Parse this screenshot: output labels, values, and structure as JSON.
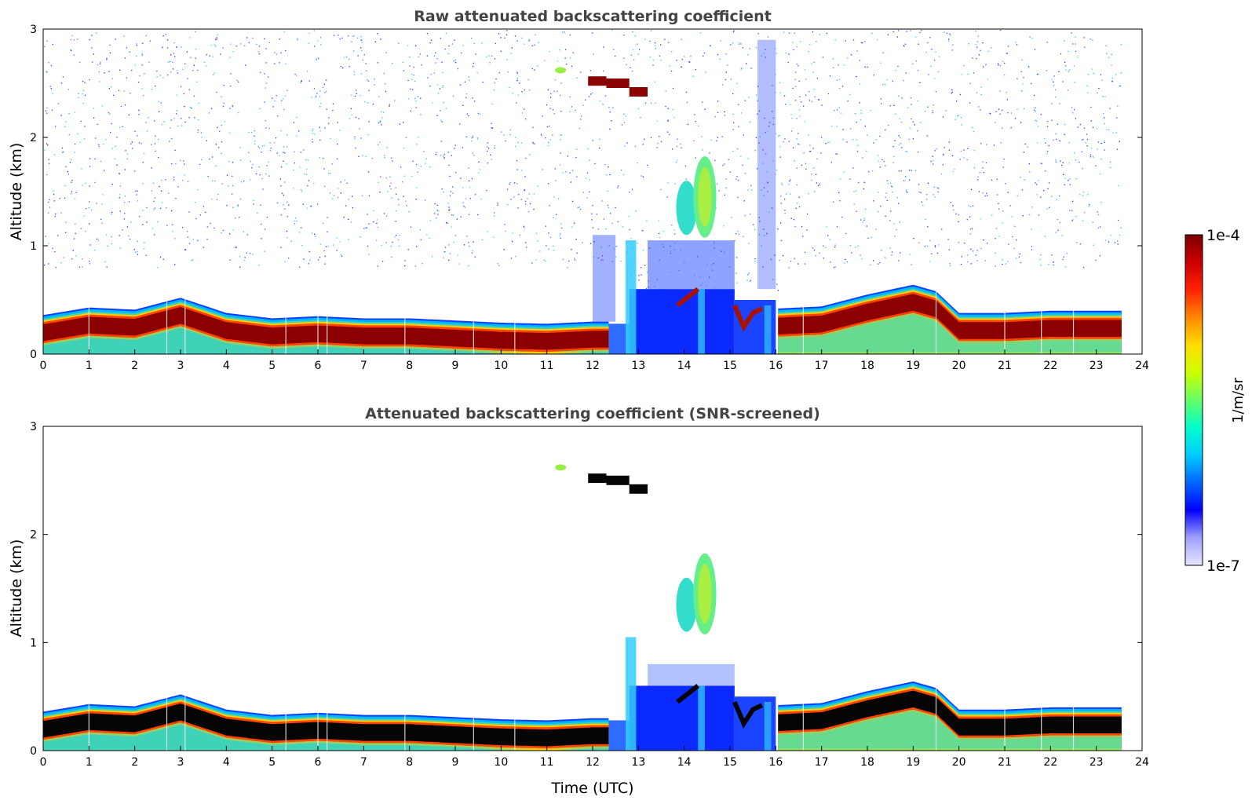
{
  "chart_data": [
    {
      "type": "heatmap",
      "title": "Raw attenuated backscattering coefficient",
      "xlabel": "",
      "ylabel": "Altitude (km)",
      "xlim": [
        0,
        24
      ],
      "ylim": [
        0,
        3
      ],
      "xticks": [
        "0",
        "1",
        "2",
        "3",
        "4",
        "5",
        "6",
        "7",
        "8",
        "9",
        "10",
        "11",
        "12",
        "13",
        "14",
        "15",
        "16",
        "17",
        "18",
        "19",
        "20",
        "21",
        "22",
        "23",
        "24"
      ],
      "yticks": [
        "0",
        "1",
        "2",
        "3"
      ],
      "screened": false,
      "data_end_time": 23.55,
      "layer_top_km": [
        [
          0,
          0.36
        ],
        [
          1,
          0.43
        ],
        [
          2,
          0.41
        ],
        [
          3,
          0.52
        ],
        [
          4,
          0.38
        ],
        [
          5,
          0.33
        ],
        [
          6,
          0.35
        ],
        [
          7,
          0.33
        ],
        [
          8,
          0.33
        ],
        [
          9,
          0.31
        ],
        [
          10,
          0.29
        ],
        [
          11,
          0.28
        ],
        [
          12,
          0.3
        ],
        [
          13,
          0.3
        ],
        [
          16,
          0.42
        ],
        [
          17,
          0.44
        ],
        [
          18,
          0.55
        ],
        [
          19,
          0.64
        ],
        [
          19.5,
          0.58
        ],
        [
          20,
          0.38
        ],
        [
          21,
          0.38
        ],
        [
          22,
          0.4
        ],
        [
          23,
          0.4
        ],
        [
          23.55,
          0.4
        ]
      ],
      "cloud_segments": [
        {
          "t_start": 11.9,
          "t_end": 12.3,
          "alt_km": 2.52
        },
        {
          "t_start": 12.3,
          "t_end": 12.8,
          "alt_km": 2.5
        },
        {
          "t_start": 12.8,
          "t_end": 13.2,
          "alt_km": 2.42
        }
      ]
    },
    {
      "type": "heatmap",
      "title": "Attenuated backscattering coefficient (SNR-screened)",
      "xlabel": "Time (UTC)",
      "ylabel": "Altitude (km)",
      "xlim": [
        0,
        24
      ],
      "ylim": [
        0,
        3
      ],
      "xticks": [
        "0",
        "1",
        "2",
        "3",
        "4",
        "5",
        "6",
        "7",
        "8",
        "9",
        "10",
        "11",
        "12",
        "13",
        "14",
        "15",
        "16",
        "17",
        "18",
        "19",
        "20",
        "21",
        "22",
        "23",
        "24"
      ],
      "yticks": [
        "0",
        "1",
        "2",
        "3"
      ],
      "screened": true,
      "data_end_time": 23.55,
      "layer_top_km": [
        [
          0,
          0.36
        ],
        [
          1,
          0.43
        ],
        [
          2,
          0.41
        ],
        [
          3,
          0.52
        ],
        [
          4,
          0.38
        ],
        [
          5,
          0.33
        ],
        [
          6,
          0.35
        ],
        [
          7,
          0.33
        ],
        [
          8,
          0.33
        ],
        [
          9,
          0.31
        ],
        [
          10,
          0.29
        ],
        [
          11,
          0.28
        ],
        [
          12,
          0.3
        ],
        [
          13,
          0.3
        ],
        [
          16,
          0.42
        ],
        [
          17,
          0.44
        ],
        [
          18,
          0.55
        ],
        [
          19,
          0.64
        ],
        [
          19.5,
          0.58
        ],
        [
          20,
          0.38
        ],
        [
          21,
          0.38
        ],
        [
          22,
          0.4
        ],
        [
          23,
          0.4
        ],
        [
          23.55,
          0.4
        ]
      ],
      "cloud_segments": [
        {
          "t_start": 11.9,
          "t_end": 12.3,
          "alt_km": 2.52
        },
        {
          "t_start": 12.3,
          "t_end": 12.8,
          "alt_km": 2.5
        },
        {
          "t_start": 12.8,
          "t_end": 13.2,
          "alt_km": 2.42
        }
      ]
    }
  ],
  "colorbar": {
    "label": "1/m/sr",
    "max_label": "1e-4",
    "min_label": "1e-7",
    "colors": [
      "#e6e6ff",
      "#a0a0ff",
      "#0000ff",
      "#0066ff",
      "#00ccff",
      "#00ffcc",
      "#66ff66",
      "#ccff00",
      "#ffdd00",
      "#ff8800",
      "#ff2200",
      "#cc0000",
      "#7a0000"
    ]
  }
}
